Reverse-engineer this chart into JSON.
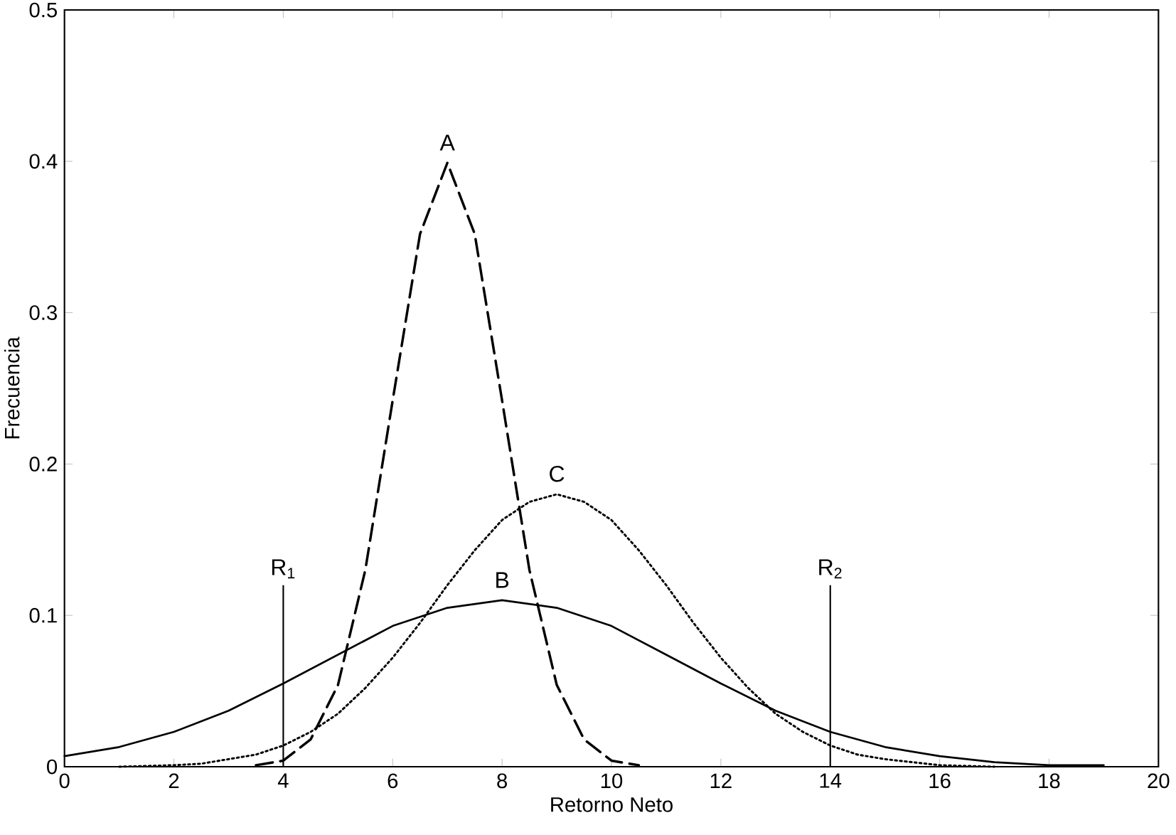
{
  "chart_data": {
    "type": "line",
    "xlabel": "Retorno Neto",
    "ylabel": "Frecuencia",
    "xlim": [
      0,
      20
    ],
    "ylim": [
      0,
      0.5
    ],
    "xticks": [
      0,
      2,
      4,
      6,
      8,
      10,
      12,
      14,
      16,
      18,
      20
    ],
    "yticks": [
      0,
      0.1,
      0.2,
      0.3,
      0.4,
      0.5
    ],
    "grid": false,
    "marker": "none",
    "series": [
      {
        "name": "A",
        "color": "#000000",
        "line_style": "dashed",
        "x": [
          3.5,
          4,
          4.5,
          5,
          5.5,
          6,
          6.5,
          7,
          7.5,
          8,
          8.5,
          9,
          9.5,
          10,
          10.5
        ],
        "values": [
          0.001,
          0.004,
          0.018,
          0.054,
          0.13,
          0.242,
          0.352,
          0.399,
          0.352,
          0.242,
          0.13,
          0.054,
          0.018,
          0.004,
          0.001
        ]
      },
      {
        "name": "B",
        "color": "#000000",
        "line_style": "solid",
        "x": [
          0,
          1,
          2,
          3,
          4,
          5,
          6,
          7,
          8,
          9,
          10,
          11,
          12,
          13,
          14,
          15,
          16,
          17,
          18,
          19
        ],
        "values": [
          0.007,
          0.013,
          0.023,
          0.037,
          0.055,
          0.074,
          0.093,
          0.105,
          0.11,
          0.105,
          0.093,
          0.074,
          0.055,
          0.037,
          0.023,
          0.013,
          0.007,
          0.003,
          0.001,
          0.001
        ]
      },
      {
        "name": "C",
        "color": "#000000",
        "line_style": "dotted",
        "x": [
          1,
          2,
          2.5,
          3,
          3.5,
          4,
          4.5,
          5,
          5.5,
          6,
          6.5,
          7,
          7.5,
          8,
          8.5,
          9,
          9.5,
          10,
          10.5,
          11,
          11.5,
          12,
          12.5,
          13,
          13.5,
          14,
          14.5,
          15,
          16,
          17
        ],
        "values": [
          0.0,
          0.001,
          0.002,
          0.005,
          0.008,
          0.014,
          0.023,
          0.035,
          0.052,
          0.072,
          0.095,
          0.12,
          0.143,
          0.163,
          0.175,
          0.18,
          0.175,
          0.163,
          0.143,
          0.12,
          0.095,
          0.072,
          0.052,
          0.035,
          0.023,
          0.014,
          0.008,
          0.005,
          0.001,
          0.0
        ]
      }
    ],
    "ref_lines": [
      {
        "axis": "x",
        "value": 4,
        "label": "R$_{1}$"
      },
      {
        "axis": "x",
        "value": 14,
        "label": "R$_{2}$"
      }
    ]
  }
}
